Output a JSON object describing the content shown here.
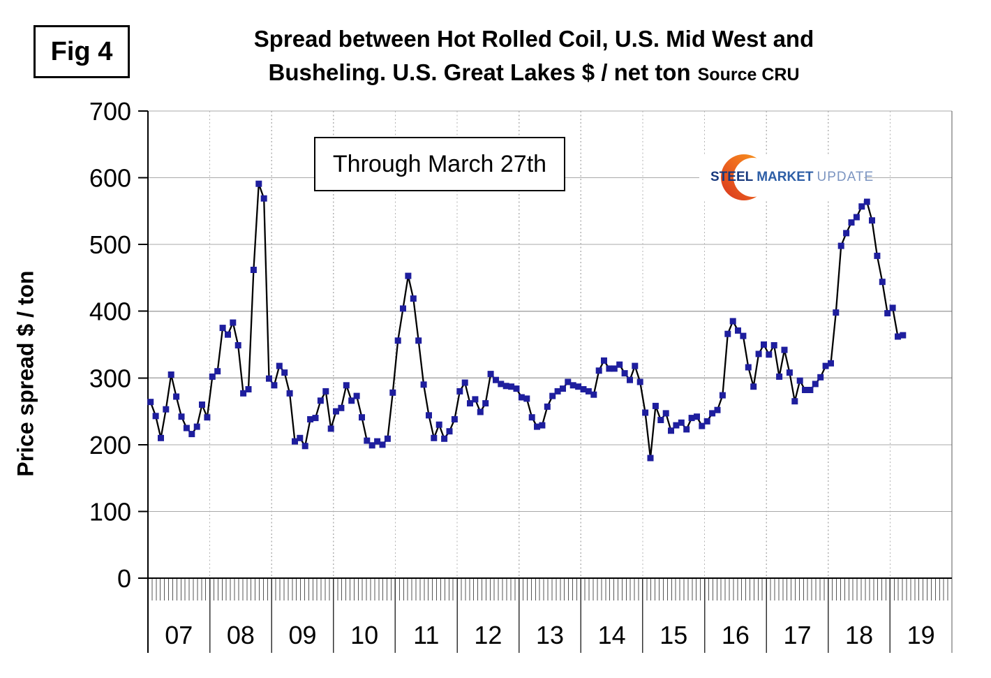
{
  "figure": {
    "label": "Fig 4"
  },
  "title": {
    "line1": "Spread between Hot Rolled Coil, U.S. Mid West and",
    "line2": "Busheling. U.S. Great Lakes  $ / net ton",
    "source": "Source CRU"
  },
  "annotation": {
    "text": "Through March 27th"
  },
  "logo": {
    "steel": "STEEL",
    "market": "MARKET",
    "update": "UPDATE"
  },
  "chart_data": {
    "type": "line",
    "title": "Spread between Hot Rolled Coil, U.S. Mid West and Busheling. U.S. Great Lakes $ / net ton",
    "source": "CRU",
    "annotation": "Through March 27th",
    "ylabel": "Price spread $ / ton",
    "xlabel": "",
    "ylim": [
      0,
      700
    ],
    "y_ticks": [
      0,
      100,
      200,
      300,
      400,
      500,
      600,
      700
    ],
    "x_tick_years": [
      "07",
      "08",
      "09",
      "10",
      "11",
      "12",
      "13",
      "14",
      "15",
      "16",
      "17",
      "18",
      "19"
    ],
    "frequency": "monthly",
    "grid": {
      "horizontal": "solid",
      "vertical": "dotted-yearly"
    },
    "legend": "none",
    "marker": "square",
    "colors": {
      "line": "#000000",
      "marker": "#1e1e9e"
    },
    "series": [
      {
        "name": "Hot Rolled Coil minus Busheling price spread ($/net ton)",
        "start": "2007-01",
        "end": "2019-03",
        "values_by_year": [
          {
            "year": "2007",
            "values": [
              264,
              243,
              210,
              253,
              305,
              272,
              242,
              225,
              216,
              227,
              260,
              241
            ]
          },
          {
            "year": "2008",
            "values": [
              302,
              310,
              375,
              365,
              383,
              349,
              277,
              283,
              462,
              591,
              569,
              299
            ]
          },
          {
            "year": "2009",
            "values": [
              289,
              318,
              308,
              277,
              205,
              210,
              198,
              238,
              240,
              266,
              280,
              224
            ]
          },
          {
            "year": "2010",
            "values": [
              250,
              255,
              289,
              266,
              273,
              241,
              206,
              199,
              205,
              200,
              209,
              278
            ]
          },
          {
            "year": "2011",
            "values": [
              356,
              404,
              453,
              419,
              356,
              290,
              244,
              210,
              230,
              209,
              220,
              238
            ]
          },
          {
            "year": "2012",
            "values": [
              280,
              293,
              262,
              268,
              249,
              262,
              306,
              297,
              291,
              288,
              287,
              284
            ]
          },
          {
            "year": "2013",
            "values": [
              271,
              269,
              241,
              227,
              229,
              257,
              273,
              280,
              284,
              294,
              289,
              287
            ]
          },
          {
            "year": "2014",
            "values": [
              283,
              280,
              275,
              311,
              326,
              314,
              314,
              320,
              307,
              297,
              318,
              294
            ]
          },
          {
            "year": "2015",
            "values": [
              248,
              180,
              258,
              237,
              247,
              221,
              229,
              233,
              223,
              240,
              242,
              228
            ]
          },
          {
            "year": "2016",
            "values": [
              235,
              247,
              252,
              274,
              366,
              385,
              371,
              363,
              316,
              287,
              336,
              350
            ]
          },
          {
            "year": "2017",
            "values": [
              335,
              349,
              302,
              342,
              308,
              265,
              296,
              282,
              282,
              291,
              301,
              318
            ]
          },
          {
            "year": "2018",
            "values": [
              322,
              398,
              498,
              517,
              533,
              541,
              557,
              564,
              536,
              483,
              444,
              397
            ]
          },
          {
            "year": "2019",
            "values": [
              405,
              362,
              364
            ]
          }
        ]
      }
    ]
  }
}
